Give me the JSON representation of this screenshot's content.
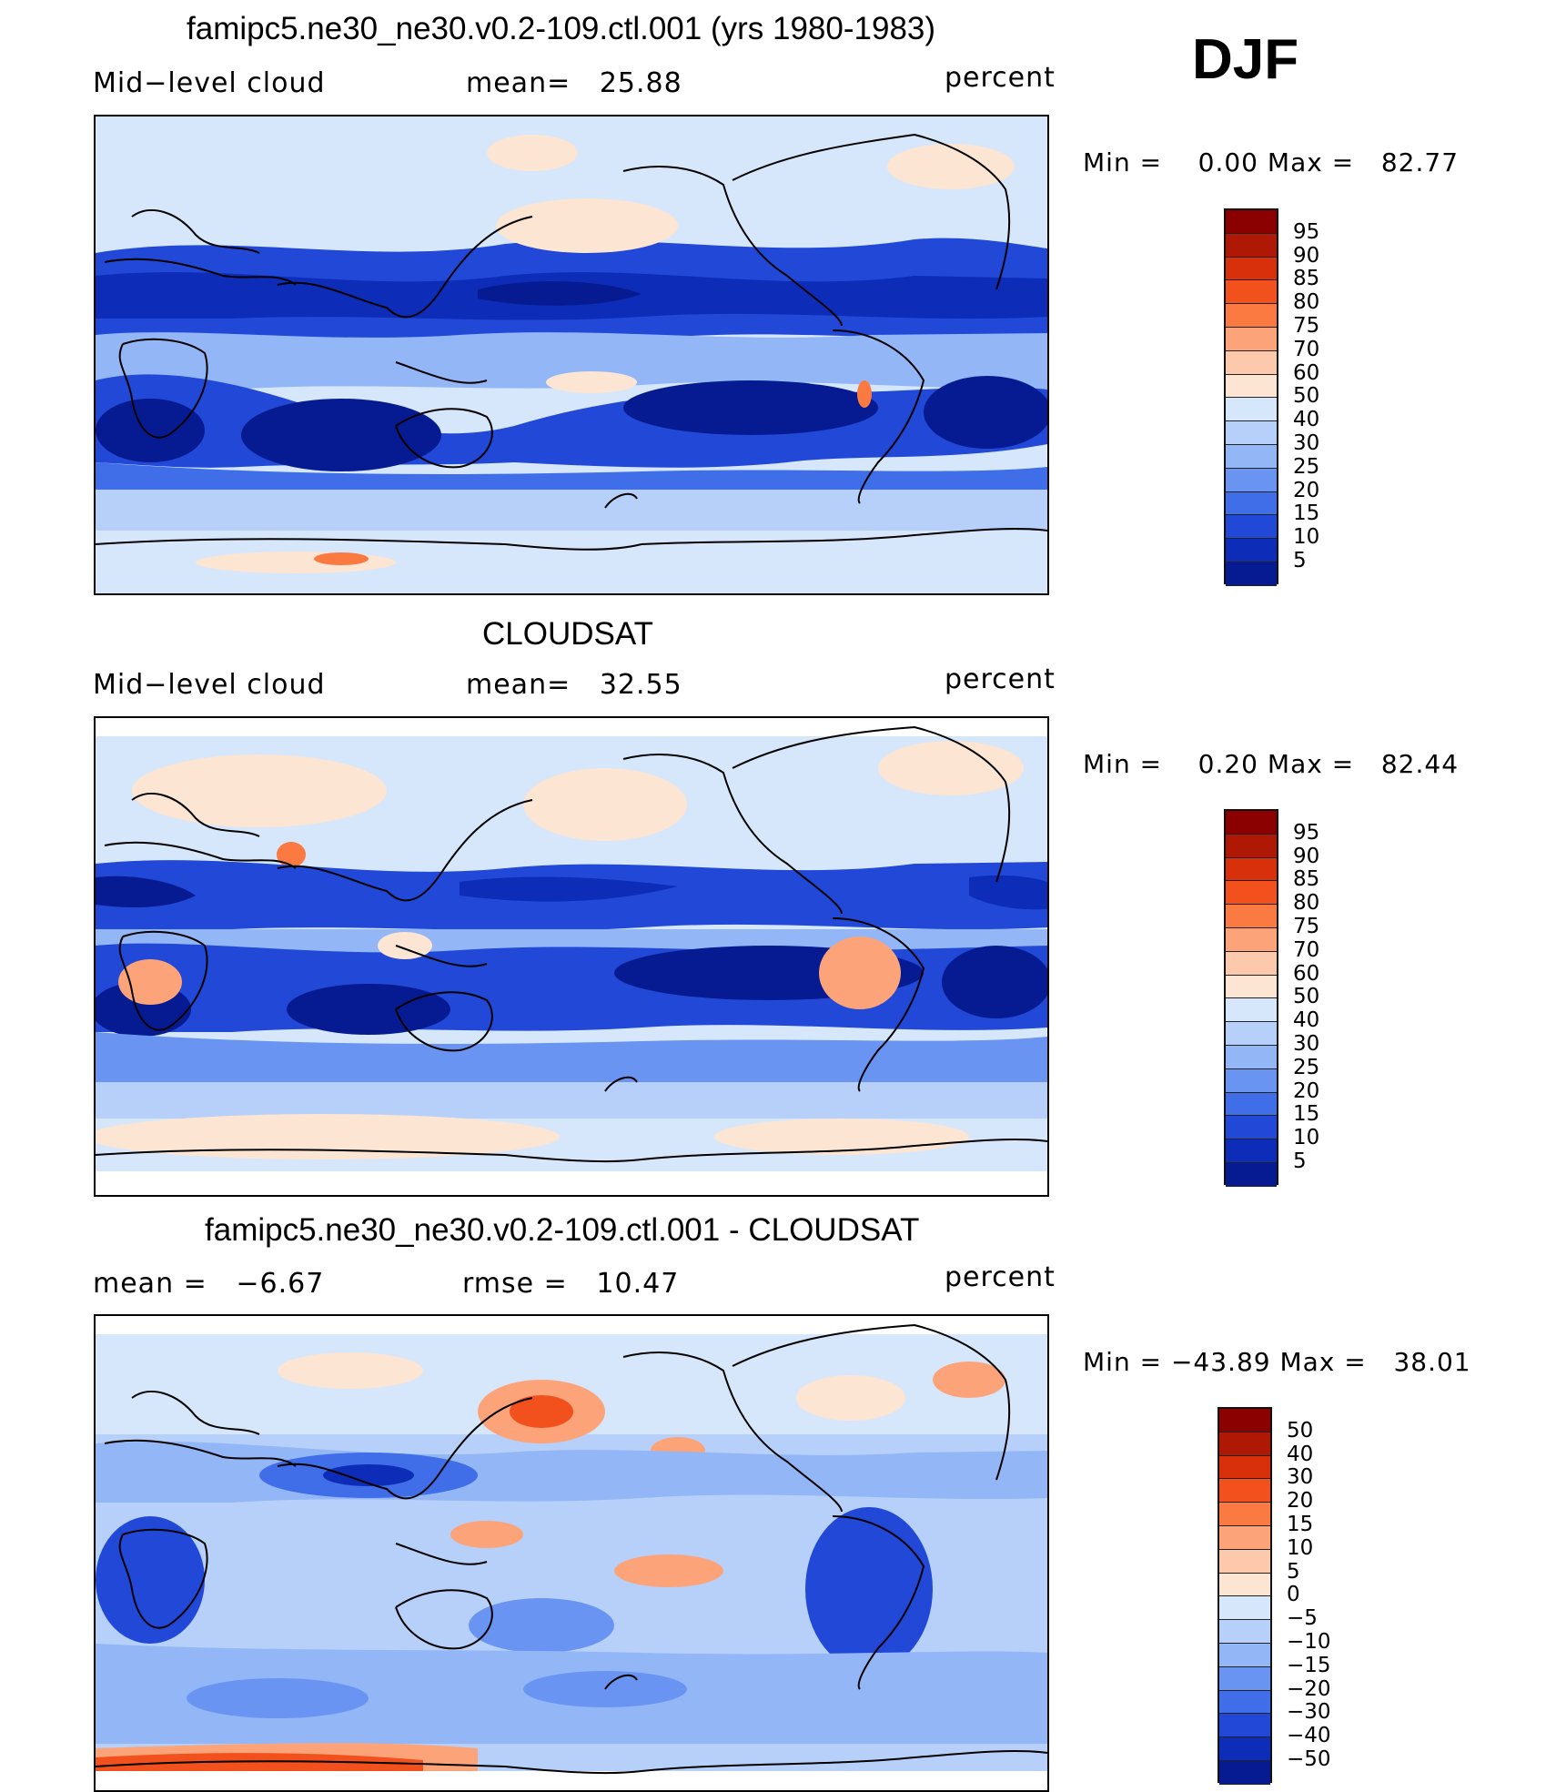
{
  "season": "DJF",
  "panels": [
    {
      "title": "famipc5.ne30_ne30.v0.2-109.ctl.001 (yrs 1980-1983)",
      "left_text_label": "Mid−level cloud",
      "center_label": "mean=",
      "center_value": "25.88",
      "units": "percent",
      "min_label": "Min =",
      "min_value": "0.00",
      "max_label": "Max =",
      "max_value": "82.77",
      "colorbar_labels": [
        "95",
        "90",
        "85",
        "80",
        "75",
        "70",
        "60",
        "50",
        "40",
        "30",
        "25",
        "20",
        "15",
        "10",
        "5"
      ],
      "colorbar_colors": [
        "#8b0000",
        "#b01806",
        "#d9300c",
        "#f2501c",
        "#fa7a42",
        "#fca37a",
        "#fcc9ac",
        "#fce5d2",
        "#d6e6fb",
        "#b6d0fa",
        "#93b6f7",
        "#6a94f2",
        "#3f6ee8",
        "#2148d6",
        "#0d2cb8",
        "#061b91"
      ]
    },
    {
      "title": "CLOUDSAT",
      "left_text_label": "Mid−level cloud",
      "center_label": "mean=",
      "center_value": "32.55",
      "units": "percent",
      "min_label": "Min =",
      "min_value": "0.20",
      "max_label": "Max =",
      "max_value": "82.44",
      "colorbar_labels": [
        "95",
        "90",
        "85",
        "80",
        "75",
        "70",
        "60",
        "50",
        "40",
        "30",
        "25",
        "20",
        "15",
        "10",
        "5"
      ],
      "colorbar_colors": [
        "#8b0000",
        "#b01806",
        "#d9300c",
        "#f2501c",
        "#fa7a42",
        "#fca37a",
        "#fcc9ac",
        "#fce5d2",
        "#d6e6fb",
        "#b6d0fa",
        "#93b6f7",
        "#6a94f2",
        "#3f6ee8",
        "#2148d6",
        "#0d2cb8",
        "#061b91"
      ]
    },
    {
      "title": "famipc5.ne30_ne30.v0.2-109.ctl.001 - CLOUDSAT",
      "left_label": "mean =",
      "left_value": "−6.67",
      "center_label": "rmse =",
      "center_value": "10.47",
      "units": "percent",
      "min_label": "Min =",
      "min_value": "−43.89",
      "max_label": "Max =",
      "max_value": "38.01",
      "colorbar_labels": [
        "50",
        "40",
        "30",
        "20",
        "15",
        "10",
        "5",
        "0",
        "−5",
        "−10",
        "−15",
        "−20",
        "−30",
        "−40",
        "−50"
      ],
      "colorbar_colors": [
        "#8b0000",
        "#b01806",
        "#d9300c",
        "#f2501c",
        "#fa7a42",
        "#fca37a",
        "#fcc9ac",
        "#fce5d2",
        "#d6e6fb",
        "#b6d0fa",
        "#93b6f7",
        "#6a94f2",
        "#3f6ee8",
        "#2148d6",
        "#0d2cb8",
        "#061b91"
      ]
    }
  ]
}
